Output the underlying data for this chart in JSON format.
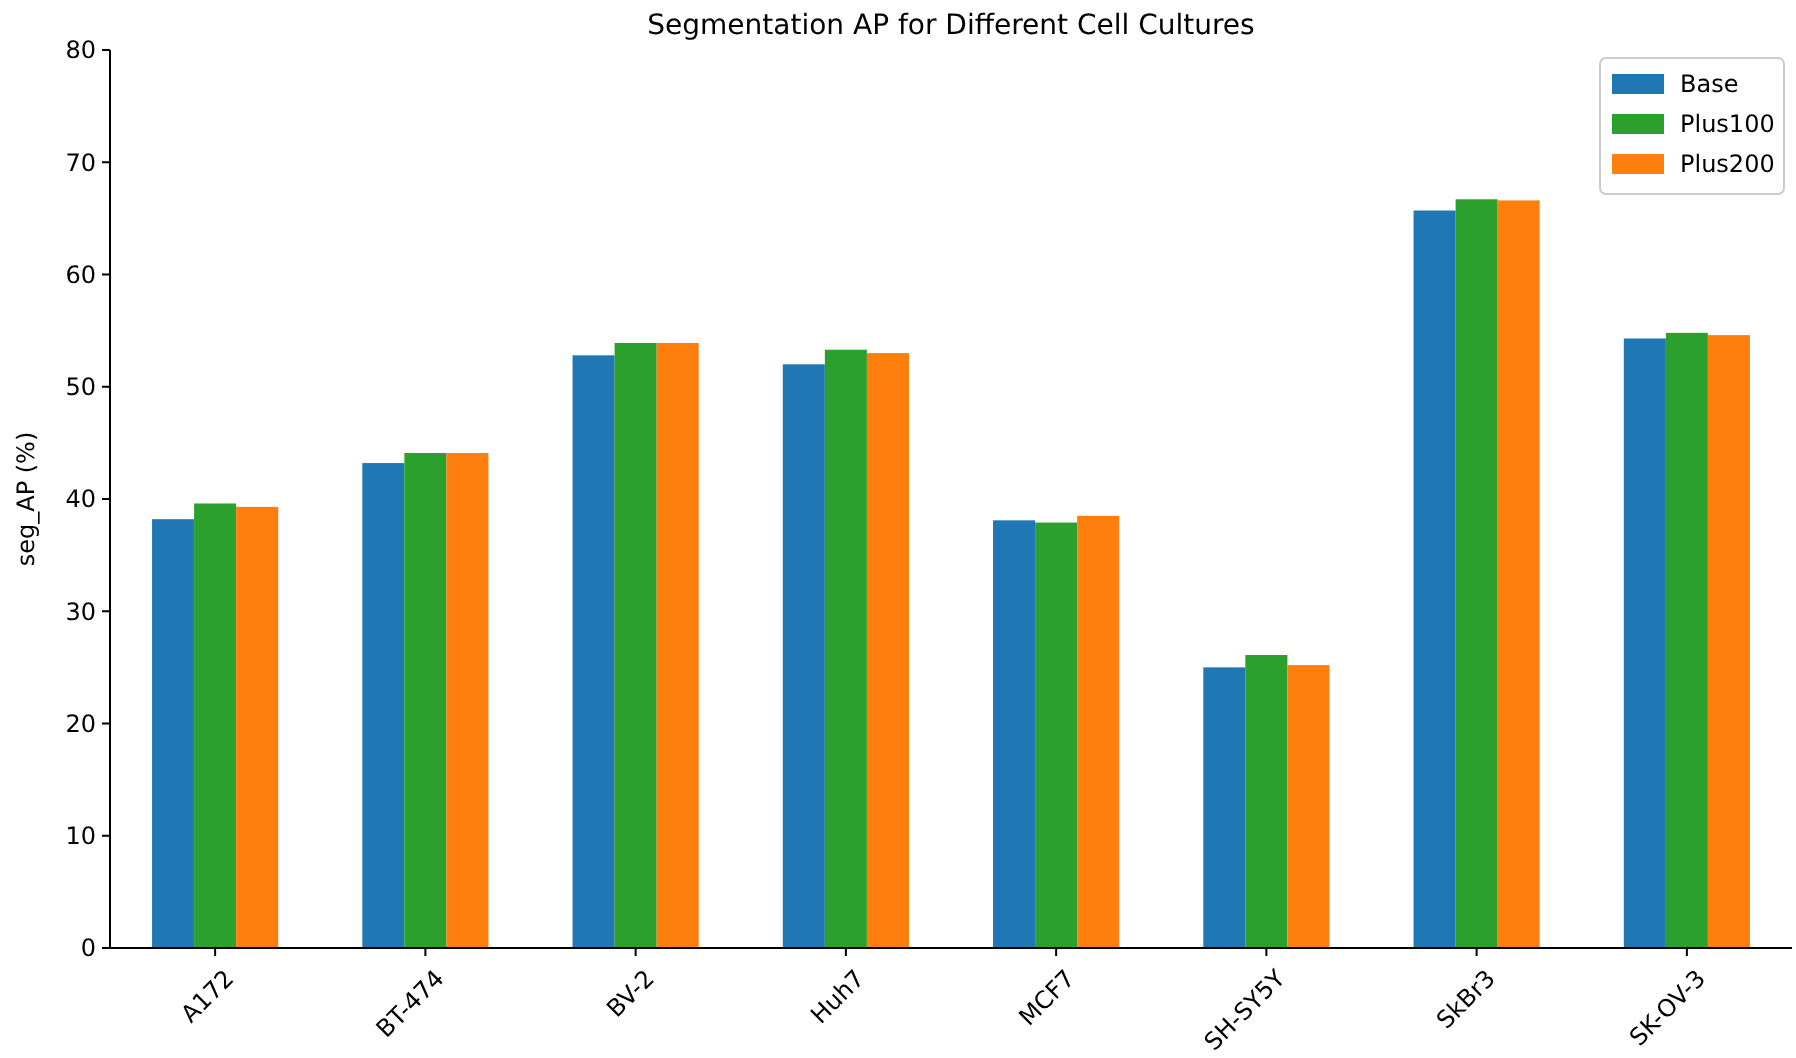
{
  "chart_data": {
    "type": "bar",
    "title": "Segmentation AP for Different Cell Cultures",
    "ylabel": "seg_AP (%)",
    "categories": [
      "A172",
      "BT-474",
      "BV-2",
      "Huh7",
      "MCF7",
      "SH-SY5Y",
      "SkBr3",
      "SK-OV-3"
    ],
    "series": [
      {
        "name": "Base",
        "color": "#1f77b4",
        "values": [
          38.2,
          43.2,
          52.8,
          52.0,
          38.1,
          25.0,
          65.7,
          54.3
        ]
      },
      {
        "name": "Plus100",
        "color": "#2ca02c",
        "values": [
          39.6,
          44.1,
          53.9,
          53.3,
          37.9,
          26.1,
          66.7,
          54.8
        ]
      },
      {
        "name": "Plus200",
        "color": "#ff7f0e",
        "values": [
          39.3,
          44.1,
          53.9,
          53.0,
          38.5,
          25.2,
          66.6,
          54.6
        ]
      }
    ],
    "ylim": [
      0,
      80
    ],
    "yticks": [
      0,
      10,
      20,
      30,
      40,
      50,
      60,
      70,
      80
    ],
    "legend": "top right"
  }
}
